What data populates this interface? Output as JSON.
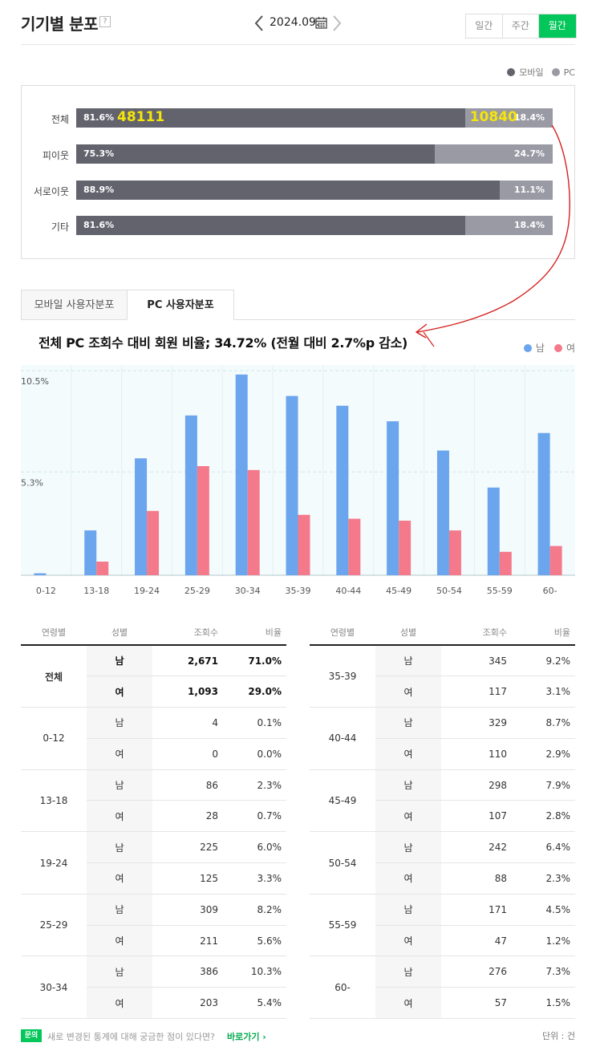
{
  "header": {
    "title": "기기별 분포",
    "help": "?",
    "date": "2024.09.",
    "periods": [
      {
        "label": "일간",
        "active": false
      },
      {
        "label": "주간",
        "active": false
      },
      {
        "label": "월간",
        "active": true
      }
    ]
  },
  "device_legend": {
    "mobile": "모바일",
    "pc": "PC",
    "mobile_color": "#62636d",
    "pc_color": "#999aa4"
  },
  "device_rows": [
    {
      "label": "전체",
      "mobile_pct": "81.6%",
      "pc_pct": "18.4%",
      "mobile_value": 81.6,
      "mobile_count": "48111",
      "pc_count": "10840"
    },
    {
      "label": "피이웃",
      "mobile_pct": "75.3%",
      "pc_pct": "24.7%",
      "mobile_value": 75.3
    },
    {
      "label": "서로이웃",
      "mobile_pct": "88.9%",
      "pc_pct": "11.1%",
      "mobile_value": 88.9
    },
    {
      "label": "기타",
      "mobile_pct": "81.6%",
      "pc_pct": "18.4%",
      "mobile_value": 81.6
    }
  ],
  "tabs": [
    {
      "label": "모바일 사용자분포",
      "active": false
    },
    {
      "label": "PC 사용자분포",
      "active": true
    }
  ],
  "headline": "전체 PC 조회수 대비 회원 비율; 34.72% (전월 대비 2.7%p 감소)",
  "gender_legend": {
    "male": "남",
    "female": "여",
    "male_color": "#6aa5ee",
    "female_color": "#f47a8b"
  },
  "chart_data": {
    "type": "bar",
    "categories": [
      "0-12",
      "13-18",
      "19-24",
      "25-29",
      "30-34",
      "35-39",
      "40-44",
      "45-49",
      "50-54",
      "55-59",
      "60-"
    ],
    "series": [
      {
        "name": "남",
        "values": [
          0.1,
          2.3,
          6.0,
          8.2,
          10.3,
          9.2,
          8.7,
          7.9,
          6.4,
          4.5,
          7.3
        ]
      },
      {
        "name": "여",
        "values": [
          0.0,
          0.7,
          3.3,
          5.6,
          5.4,
          3.1,
          2.9,
          2.8,
          2.3,
          1.2,
          1.5
        ]
      }
    ],
    "ytick_labels": [
      "10.5%",
      "5.3%"
    ],
    "yticks": [
      10.5,
      5.3
    ],
    "ylim": [
      0,
      10.5
    ],
    "grid": true
  },
  "table_headers": [
    "연령별",
    "성별",
    "조회수",
    "비율"
  ],
  "table_left": [
    {
      "age": "전체",
      "bold": true,
      "rows": [
        {
          "sex": "남",
          "count": "2,671",
          "pct": "71.0%"
        },
        {
          "sex": "여",
          "count": "1,093",
          "pct": "29.0%"
        }
      ]
    },
    {
      "age": "0-12",
      "rows": [
        {
          "sex": "남",
          "count": "4",
          "pct": "0.1%"
        },
        {
          "sex": "여",
          "count": "0",
          "pct": "0.0%"
        }
      ]
    },
    {
      "age": "13-18",
      "rows": [
        {
          "sex": "남",
          "count": "86",
          "pct": "2.3%"
        },
        {
          "sex": "여",
          "count": "28",
          "pct": "0.7%"
        }
      ]
    },
    {
      "age": "19-24",
      "rows": [
        {
          "sex": "남",
          "count": "225",
          "pct": "6.0%"
        },
        {
          "sex": "여",
          "count": "125",
          "pct": "3.3%"
        }
      ]
    },
    {
      "age": "25-29",
      "rows": [
        {
          "sex": "남",
          "count": "309",
          "pct": "8.2%"
        },
        {
          "sex": "여",
          "count": "211",
          "pct": "5.6%"
        }
      ]
    },
    {
      "age": "30-34",
      "rows": [
        {
          "sex": "남",
          "count": "386",
          "pct": "10.3%"
        },
        {
          "sex": "여",
          "count": "203",
          "pct": "5.4%"
        }
      ]
    }
  ],
  "table_right": [
    {
      "age": "35-39",
      "rows": [
        {
          "sex": "남",
          "count": "345",
          "pct": "9.2%"
        },
        {
          "sex": "여",
          "count": "117",
          "pct": "3.1%"
        }
      ]
    },
    {
      "age": "40-44",
      "rows": [
        {
          "sex": "남",
          "count": "329",
          "pct": "8.7%"
        },
        {
          "sex": "여",
          "count": "110",
          "pct": "2.9%"
        }
      ]
    },
    {
      "age": "45-49",
      "rows": [
        {
          "sex": "남",
          "count": "298",
          "pct": "7.9%"
        },
        {
          "sex": "여",
          "count": "107",
          "pct": "2.8%"
        }
      ]
    },
    {
      "age": "50-54",
      "rows": [
        {
          "sex": "남",
          "count": "242",
          "pct": "6.4%"
        },
        {
          "sex": "여",
          "count": "88",
          "pct": "2.3%"
        }
      ]
    },
    {
      "age": "55-59",
      "rows": [
        {
          "sex": "남",
          "count": "171",
          "pct": "4.5%"
        },
        {
          "sex": "여",
          "count": "47",
          "pct": "1.2%"
        }
      ]
    },
    {
      "age": "60-",
      "rows": [
        {
          "sex": "남",
          "count": "276",
          "pct": "7.3%"
        },
        {
          "sex": "여",
          "count": "57",
          "pct": "1.5%"
        }
      ]
    }
  ],
  "footer": {
    "badge": "문의",
    "text": "새로 변경된 통계에 대해 궁금한 점이 있다면?",
    "link": "바로가기 ›",
    "unit": "단위 : 건"
  }
}
